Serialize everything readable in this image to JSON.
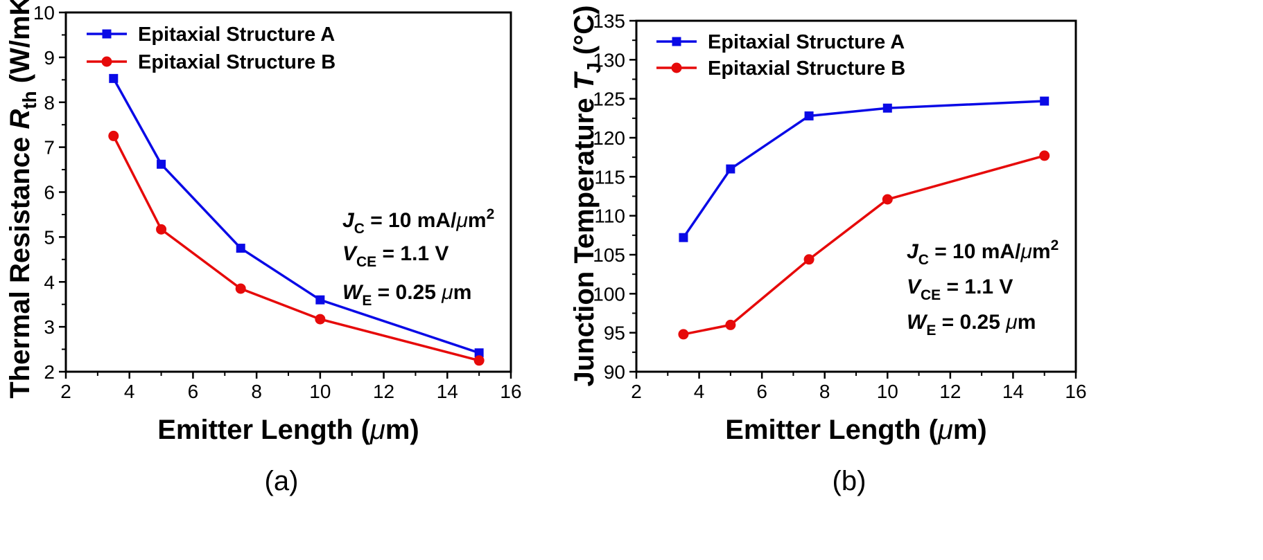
{
  "colors": {
    "series_a": "#0a0ae6",
    "series_b": "#e60a0a",
    "axis": "#000000"
  },
  "chart_data": [
    {
      "type": "line",
      "panel_label": "(a)",
      "xlabel_main": "Emitter Length (",
      "xlabel_greek": "μ",
      "xlabel_end": "m)",
      "ylabel_main": "Thermal Resistance ",
      "ylabel_symbol": "R",
      "ylabel_sub": "th",
      "ylabel_unit": " (W/mK)",
      "xlim": [
        2,
        16
      ],
      "ylim": [
        2,
        10
      ],
      "xticks": [
        2,
        4,
        6,
        8,
        10,
        12,
        14,
        16
      ],
      "yticks": [
        2,
        3,
        4,
        5,
        6,
        7,
        8,
        9,
        10
      ],
      "x": [
        3.5,
        5,
        7.5,
        10,
        15
      ],
      "series": [
        {
          "name": "Epitaxial Structure A",
          "marker": "square",
          "values": [
            8.53,
            6.62,
            4.75,
            3.6,
            2.42
          ]
        },
        {
          "name": "Epitaxial Structure B",
          "marker": "circle",
          "values": [
            7.25,
            5.17,
            3.85,
            3.17,
            2.25
          ]
        }
      ],
      "legend_position": "top-left",
      "annotations": [
        {
          "var": "J",
          "sub": "C",
          "text": " = 10 mA/",
          "greek": "μ",
          "unit": "m",
          "sup": "2"
        },
        {
          "var": "V",
          "sub": "CE",
          "text": " = 1.1 V"
        },
        {
          "var": "W",
          "sub": "E",
          "text": " = 0.25 ",
          "greek": "μ",
          "unit": "m"
        }
      ]
    },
    {
      "type": "line",
      "panel_label": "(b)",
      "xlabel_main": "Emitter Length (",
      "xlabel_greek": "μ",
      "xlabel_end": "m)",
      "ylabel_main": "Junction Temperature  ",
      "ylabel_symbol": "T",
      "ylabel_sub": "J",
      "ylabel_unit": " (°C)",
      "xlim": [
        2,
        16
      ],
      "ylim": [
        90,
        135
      ],
      "xticks": [
        2,
        4,
        6,
        8,
        10,
        12,
        14,
        16
      ],
      "yticks": [
        90,
        95,
        100,
        105,
        110,
        115,
        120,
        125,
        130,
        135
      ],
      "x": [
        3.5,
        5,
        7.5,
        10,
        15
      ],
      "series": [
        {
          "name": "Epitaxial Structure A",
          "marker": "square",
          "values": [
            107.2,
            116.0,
            122.8,
            123.8,
            124.7
          ]
        },
        {
          "name": "Epitaxial Structure B",
          "marker": "circle",
          "values": [
            94.8,
            96.0,
            104.4,
            112.1,
            117.7
          ]
        }
      ],
      "legend_position": "top-left",
      "annotations": [
        {
          "var": "J",
          "sub": "C",
          "text": " = 10 mA/",
          "greek": "μ",
          "unit": "m",
          "sup": "2"
        },
        {
          "var": "V",
          "sub": "CE",
          "text": " = 1.1 V"
        },
        {
          "var": "W",
          "sub": "E",
          "text": " = 0.25 ",
          "greek": "μ",
          "unit": "m"
        }
      ]
    }
  ]
}
